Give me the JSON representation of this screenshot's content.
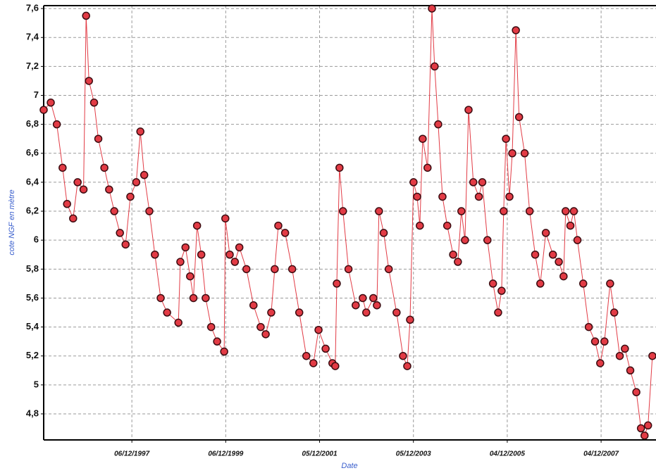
{
  "chart_data": {
    "type": "line",
    "markers": true,
    "x_label": "Date",
    "y_label": "cote NGF en mètre",
    "color": "#e23b45",
    "marker_edge_color": "#3b0b10",
    "grid": true,
    "xlim": [
      "1996-01-20",
      "2009-02-03"
    ],
    "ylim": [
      4.62,
      7.62
    ],
    "xticks": [
      {
        "value": "1997-12-06",
        "label": "06/12/1997"
      },
      {
        "value": "1999-12-06",
        "label": "06/12/1999"
      },
      {
        "value": "2001-12-05",
        "label": "05/12/2001"
      },
      {
        "value": "2003-12-05",
        "label": "05/12/2003"
      },
      {
        "value": "2005-12-04",
        "label": "04/12/2005"
      },
      {
        "value": "2007-12-04",
        "label": "04/12/2007"
      }
    ],
    "yticks": [
      {
        "value": 7.6,
        "label": "7,6"
      },
      {
        "value": 7.4,
        "label": "7,4"
      },
      {
        "value": 7.2,
        "label": "7,2"
      },
      7,
      {
        "value": 6.8,
        "label": "6,8"
      },
      {
        "value": 6.6,
        "label": "6,6"
      },
      {
        "value": 6.4,
        "label": "6,4"
      },
      {
        "value": 6.2,
        "label": "6,2"
      },
      6,
      {
        "value": 5.8,
        "label": "5,8"
      },
      {
        "value": 5.6,
        "label": "5,6"
      },
      {
        "value": 5.4,
        "label": "5,4"
      },
      {
        "value": 5.2,
        "label": "5,2"
      },
      5,
      {
        "value": 4.8,
        "label": "4,8"
      }
    ],
    "x": [
      "1996-01-20",
      "1996-03-15",
      "1996-05-01",
      "1996-06-15",
      "1996-07-20",
      "1996-09-05",
      "1996-10-10",
      "1996-11-25",
      "1996-12-15",
      "1997-01-06",
      "1997-02-15",
      "1997-03-20",
      "1997-05-06",
      "1997-06-12",
      "1997-07-22",
      "1997-09-04",
      "1997-10-18",
      "1997-11-24",
      "1998-01-09",
      "1998-02-10",
      "1998-03-12",
      "1998-04-21",
      "1998-06-03",
      "1998-07-18",
      "1998-09-06",
      "1998-12-03",
      "1998-12-18",
      "1999-01-27",
      "1999-03-04",
      "1999-03-30",
      "1999-04-27",
      "1999-05-30",
      "1999-07-03",
      "1999-08-15",
      "1999-09-30",
      "1999-11-24",
      "1999-12-03",
      "2000-01-06",
      "2000-02-15",
      "2000-03-21",
      "2000-05-15",
      "2000-07-09",
      "2000-09-03",
      "2000-10-12",
      "2000-11-24",
      "2000-12-21",
      "2001-01-18",
      "2001-03-12",
      "2001-05-06",
      "2001-06-30",
      "2001-08-24",
      "2001-10-18",
      "2001-11-27",
      "2002-01-21",
      "2002-03-15",
      "2002-04-06",
      "2002-04-18",
      "2002-05-09",
      "2002-06-05",
      "2002-07-18",
      "2002-09-12",
      "2002-11-06",
      "2002-12-03",
      "2003-01-27",
      "2003-02-24",
      "2003-03-12",
      "2003-04-18",
      "2003-05-27",
      "2003-07-27",
      "2003-09-15",
      "2003-10-18",
      "2003-11-09",
      "2003-12-06",
      "2004-01-03",
      "2004-01-24",
      "2004-02-15",
      "2004-03-24",
      "2004-04-27",
      "2004-05-18",
      "2004-06-15",
      "2004-07-18",
      "2004-08-24",
      "2004-10-09",
      "2004-11-15",
      "2004-12-12",
      "2005-01-09",
      "2005-02-06",
      "2005-03-15",
      "2005-04-27",
      "2005-05-24",
      "2005-07-03",
      "2005-08-15",
      "2005-09-24",
      "2005-10-21",
      "2005-11-06",
      "2005-11-24",
      "2005-12-21",
      "2006-01-12",
      "2006-02-09",
      "2006-03-06",
      "2006-04-18",
      "2006-05-27",
      "2006-07-09",
      "2006-08-18",
      "2006-09-30",
      "2006-11-24",
      "2007-01-09",
      "2007-02-15",
      "2007-03-03",
      "2007-04-09",
      "2007-05-06",
      "2007-06-03",
      "2007-07-18",
      "2007-08-30",
      "2007-10-18",
      "2007-11-27",
      "2007-12-30",
      "2008-02-12",
      "2008-03-15",
      "2008-04-27",
      "2008-06-06",
      "2008-07-18",
      "2008-09-03",
      "2008-10-09",
      "2008-11-06",
      "2008-12-03",
      "2009-01-06"
    ],
    "values": [
      6.9,
      6.95,
      6.8,
      6.5,
      6.25,
      6.15,
      6.4,
      6.35,
      7.55,
      7.1,
      6.95,
      6.7,
      6.5,
      6.35,
      6.2,
      6.05,
      5.97,
      6.3,
      6.4,
      6.75,
      6.45,
      6.2,
      5.9,
      5.6,
      5.5,
      5.43,
      5.85,
      5.95,
      5.75,
      5.6,
      6.1,
      5.9,
      5.6,
      5.4,
      5.3,
      5.23,
      6.15,
      5.9,
      5.85,
      5.95,
      5.8,
      5.55,
      5.4,
      5.35,
      5.5,
      5.8,
      6.1,
      6.05,
      5.8,
      5.5,
      5.2,
      5.15,
      5.38,
      5.25,
      5.15,
      5.13,
      5.7,
      6.5,
      6.2,
      5.8,
      5.55,
      5.6,
      5.5,
      5.6,
      5.55,
      6.2,
      6.05,
      5.8,
      5.5,
      5.2,
      5.13,
      5.45,
      6.4,
      6.3,
      6.1,
      6.7,
      6.5,
      7.6,
      7.2,
      6.8,
      6.3,
      6.1,
      5.9,
      5.85,
      6.2,
      6.0,
      6.9,
      6.4,
      6.3,
      6.4,
      6.0,
      5.7,
      5.5,
      5.65,
      6.2,
      6.7,
      6.3,
      6.6,
      7.45,
      6.85,
      6.6,
      6.2,
      5.9,
      5.7,
      6.05,
      5.9,
      5.85,
      5.75,
      6.2,
      6.1,
      6.2,
      6.0,
      5.7,
      5.4,
      5.3,
      5.15,
      5.3,
      5.7,
      5.5,
      5.2,
      5.25,
      5.1,
      4.95,
      4.7,
      4.65,
      4.72,
      5.2
    ]
  }
}
